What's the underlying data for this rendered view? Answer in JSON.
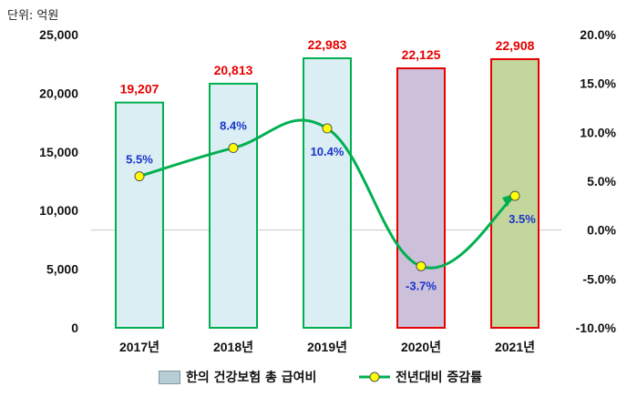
{
  "unit_label": "단위: 억원",
  "legend": {
    "bar_label": "한의 건강보험 총 급여비",
    "line_label": "전년대비 증감률"
  },
  "chart_data": {
    "type": "bar+line",
    "categories": [
      "2017년",
      "2018년",
      "2019년",
      "2020년",
      "2021년"
    ],
    "bars": {
      "name": "한의 건강보험 총 급여비",
      "values": [
        19207,
        20813,
        22983,
        22125,
        22908
      ],
      "labels": [
        "19,207",
        "20,813",
        "22,983",
        "22,125",
        "22,908"
      ],
      "fills": [
        "#dbeef3",
        "#dbeef3",
        "#dbeef3",
        "#ccc0da",
        "#c3d69b"
      ],
      "strokes": [
        "#00b050",
        "#00b050",
        "#00b050",
        "#e60000",
        "#e60000"
      ]
    },
    "line": {
      "name": "전년대비 증감률",
      "values": [
        5.5,
        8.4,
        10.4,
        -3.7,
        3.5
      ],
      "labels": [
        "5.5%",
        "8.4%",
        "10.4%",
        "-3.7%",
        "3.5%"
      ],
      "color": "#00b050",
      "marker_color": "#ffff00"
    },
    "y_left": {
      "ylim": [
        0,
        25000
      ],
      "ticks": [
        "0",
        "5,000",
        "10,000",
        "15,000",
        "20,000",
        "25,000"
      ]
    },
    "y_right": {
      "ylim": [
        -10,
        20
      ],
      "ticks": [
        "-10.0%",
        "-5.0%",
        "0.0%",
        "5.0%",
        "10.0%",
        "15.0%",
        "20.0%"
      ]
    },
    "colors": {
      "bar_value": "#e60000",
      "line_value": "#1a33cc"
    }
  }
}
